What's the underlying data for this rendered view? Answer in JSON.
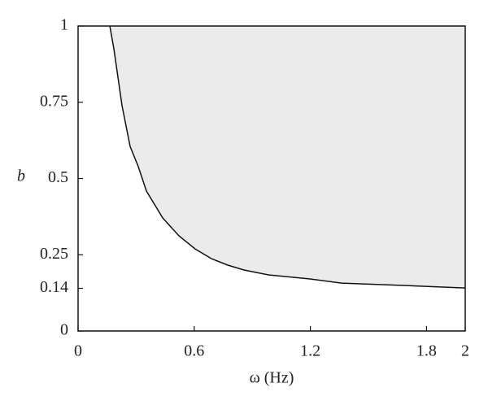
{
  "chart_data": {
    "type": "line",
    "xlabel": "ω (Hz)",
    "ylabel": "b",
    "x": [
      0.164,
      0.185,
      0.227,
      0.269,
      0.311,
      0.353,
      0.437,
      0.521,
      0.605,
      0.689,
      0.773,
      0.857,
      0.983,
      1.193,
      1.361,
      1.697,
      2
    ],
    "values": [
      1,
      0.925,
      0.739,
      0.605,
      0.539,
      0.459,
      0.371,
      0.312,
      0.269,
      0.237,
      0.216,
      0.2,
      0.184,
      0.171,
      0.157,
      0.149,
      0.141
    ],
    "color": "#111111",
    "fill_color": "#ebebeb",
    "fill": "above",
    "xlim": [
      0,
      2
    ],
    "ylim": [
      0,
      1
    ],
    "xticks": [
      0,
      0.6,
      1.2,
      1.8,
      2
    ],
    "yticks": [
      0,
      0.14,
      0.25,
      0.5,
      0.75,
      1
    ]
  }
}
